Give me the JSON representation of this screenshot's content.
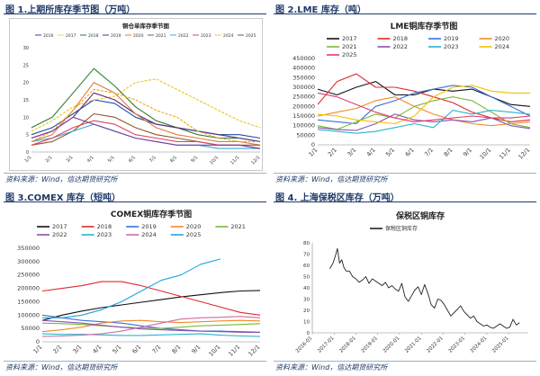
{
  "panels": [
    {
      "fig_title": "图 1.上期所库存季节图（万吨）",
      "source": "资料来源：Wind，信达期货研究所"
    },
    {
      "fig_title": "图 2.LME 库存（吨）",
      "source": "资料来源：Wind，信达期货研究所"
    },
    {
      "fig_title": "图 3.COMEX 库存（短吨）",
      "source": "资料来源：Wind，信达期货研究所"
    },
    {
      "fig_title": "图 4. 上海保税区库存（万吨）",
      "source": "资料来源：Wind，信达期货研究所"
    }
  ],
  "chart_data": [
    {
      "type": "line",
      "title": "铜仓单库存季节图",
      "ylim": [
        0,
        30
      ],
      "yticks": [
        0,
        5,
        10,
        15,
        20,
        25,
        30
      ],
      "xticks": [
        "1/1",
        "2/1",
        "3/1",
        "4/1",
        "5/1",
        "6/1",
        "7/1",
        "8/1",
        "9/1",
        "10/1",
        "11/1",
        "12/1"
      ],
      "legend_position": "top",
      "grid": false,
      "series": [
        {
          "name": "2016",
          "color": "#1f4e9c",
          "values": [
            5,
            7,
            11,
            15,
            14,
            10,
            8,
            7,
            6,
            5,
            5,
            4
          ]
        },
        {
          "name": "2017",
          "color": "#f0c419",
          "dash": true,
          "values": [
            6,
            9,
            13,
            15,
            16,
            20,
            21,
            18,
            15,
            12,
            9,
            7
          ]
        },
        {
          "name": "2018",
          "color": "#2e7d32",
          "values": [
            7,
            10,
            17,
            24,
            19,
            13,
            9,
            7,
            5,
            4,
            4,
            3
          ]
        },
        {
          "name": "2019",
          "color": "#5b2c83",
          "values": [
            4,
            6,
            10,
            17,
            15,
            11,
            8,
            7,
            6,
            5,
            4,
            3
          ]
        },
        {
          "name": "2020",
          "color": "#e07b39",
          "values": [
            3,
            5,
            12,
            20,
            17,
            11,
            7,
            5,
            4,
            3,
            3,
            2
          ]
        },
        {
          "name": "2021",
          "color": "#8b5a2b",
          "values": [
            2,
            3,
            6,
            11,
            10,
            7,
            5,
            4,
            3,
            2,
            2,
            2
          ]
        },
        {
          "name": "2022",
          "color": "#3fa9d8",
          "values": [
            3,
            4,
            6,
            8,
            6,
            4,
            3,
            2,
            2,
            1,
            1,
            1
          ]
        },
        {
          "name": "2023",
          "color": "#e0445e",
          "values": [
            2,
            4,
            7,
            9,
            8,
            5,
            4,
            3,
            3,
            2,
            2,
            1
          ]
        },
        {
          "name": "2024",
          "color": "#f2a51a",
          "dash": true,
          "values": [
            3,
            6,
            12,
            18,
            17,
            15,
            12,
            10,
            6,
            4,
            3,
            3
          ]
        },
        {
          "name": "2025",
          "color": "#7b3fa0",
          "values": [
            4,
            6,
            10,
            8,
            6,
            4,
            3,
            2,
            2,
            2,
            2,
            1
          ]
        }
      ]
    },
    {
      "type": "line",
      "title": "LME铜库存季节图",
      "ylim": [
        0,
        450000
      ],
      "yticks": [
        0,
        50000,
        100000,
        150000,
        200000,
        250000,
        300000,
        350000,
        400000,
        450000
      ],
      "xticks": [
        "1/1",
        "2/1",
        "3/1",
        "4/1",
        "5/1",
        "6/1",
        "7/1",
        "8/1",
        "9/1",
        "10/1",
        "11/1",
        "12/1"
      ],
      "legend_position": "top",
      "grid": false,
      "series": [
        {
          "name": "2017",
          "color": "#111111",
          "values": [
            290000,
            260000,
            300000,
            330000,
            260000,
            260000,
            290000,
            280000,
            290000,
            250000,
            210000,
            200000
          ]
        },
        {
          "name": "2018",
          "color": "#e0292b",
          "values": [
            210000,
            330000,
            370000,
            300000,
            300000,
            280000,
            250000,
            220000,
            170000,
            140000,
            120000,
            130000
          ]
        },
        {
          "name": "2019",
          "color": "#3a6fd8",
          "values": [
            130000,
            120000,
            110000,
            200000,
            230000,
            270000,
            290000,
            310000,
            300000,
            250000,
            200000,
            150000
          ]
        },
        {
          "name": "2020",
          "color": "#f08a24",
          "values": [
            150000,
            170000,
            190000,
            230000,
            250000,
            200000,
            160000,
            130000,
            110000,
            100000,
            110000,
            120000
          ]
        },
        {
          "name": "2021",
          "color": "#7fb539",
          "values": [
            100000,
            80000,
            120000,
            160000,
            140000,
            200000,
            230000,
            250000,
            230000,
            170000,
            110000,
            90000
          ]
        },
        {
          "name": "2022",
          "color": "#8a4fb3",
          "values": [
            90000,
            80000,
            75000,
            110000,
            160000,
            130000,
            120000,
            130000,
            120000,
            140000,
            100000,
            85000
          ]
        },
        {
          "name": "2023",
          "color": "#2bb3c9",
          "values": [
            80000,
            70000,
            60000,
            70000,
            90000,
            110000,
            90000,
            180000,
            160000,
            180000,
            170000,
            160000
          ]
        },
        {
          "name": "2024",
          "color": "#f4c000",
          "values": [
            160000,
            150000,
            130000,
            120000,
            110000,
            150000,
            250000,
            300000,
            310000,
            280000,
            270000,
            270000
          ]
        },
        {
          "name": "2025",
          "color": "#e03a6e",
          "values": [
            270000,
            250000,
            210000,
            170000,
            140000,
            120000,
            130000,
            140000,
            150000,
            140000,
            140000,
            150000
          ]
        }
      ]
    },
    {
      "type": "line",
      "title": "COMEX铜库存季节图",
      "ylim": [
        0,
        350000
      ],
      "yticks": [
        0,
        50000,
        100000,
        150000,
        200000,
        250000,
        300000,
        350000
      ],
      "xticks": [
        "1/1",
        "2/1",
        "3/1",
        "4/1",
        "5/1",
        "6/1",
        "7/1",
        "8/1",
        "9/1",
        "10/1",
        "11/1",
        "12/1"
      ],
      "legend_position": "top",
      "grid": false,
      "series": [
        {
          "name": "2017",
          "color": "#111111",
          "values": [
            80000,
            100000,
            115000,
            128000,
            138000,
            148000,
            158000,
            168000,
            176000,
            184000,
            190000,
            192000
          ]
        },
        {
          "name": "2018",
          "color": "#e0292b",
          "values": [
            190000,
            200000,
            210000,
            225000,
            225000,
            210000,
            190000,
            170000,
            150000,
            130000,
            110000,
            100000
          ]
        },
        {
          "name": "2019",
          "color": "#3a6fd8",
          "values": [
            100000,
            90000,
            80000,
            75000,
            70000,
            60000,
            50000,
            45000,
            40000,
            40000,
            38000,
            36000
          ]
        },
        {
          "name": "2020",
          "color": "#f08a24",
          "values": [
            38000,
            45000,
            55000,
            70000,
            78000,
            80000,
            75000,
            72000,
            75000,
            78000,
            80000,
            78000
          ]
        },
        {
          "name": "2021",
          "color": "#7fb539",
          "values": [
            70000,
            68000,
            65000,
            60000,
            55000,
            52000,
            50000,
            55000,
            60000,
            62000,
            65000,
            68000
          ]
        },
        {
          "name": "2022",
          "color": "#8a4fb3",
          "values": [
            80000,
            75000,
            70000,
            62000,
            55000,
            48000,
            45000,
            42000,
            40000,
            38000,
            36000,
            35000
          ]
        },
        {
          "name": "2023",
          "color": "#2bb3c9",
          "values": [
            30000,
            28000,
            28000,
            26000,
            24000,
            24000,
            26000,
            28000,
            30000,
            25000,
            22000,
            20000
          ]
        },
        {
          "name": "2024",
          "color": "#d16ba5",
          "values": [
            20000,
            22000,
            25000,
            30000,
            40000,
            55000,
            70000,
            85000,
            90000,
            92000,
            95000,
            90000
          ]
        },
        {
          "name": "2025",
          "color": "#1fa3e0",
          "values": [
            90000,
            90000,
            100000,
            120000,
            150000,
            190000,
            230000,
            250000,
            290000,
            310000
          ]
        }
      ]
    },
    {
      "type": "line",
      "title": "保税区铜库存",
      "ylim": [
        0,
        80
      ],
      "yticks": [
        0,
        10,
        20,
        30,
        40,
        50,
        60,
        70,
        80
      ],
      "xticks": [
        "2016-01",
        "2017-01",
        "2018-01",
        "2019-01",
        "2020-01",
        "2021-01",
        "2022-01",
        "2023-01",
        "2024-01",
        "2025-01"
      ],
      "legend_position": "top",
      "grid": false,
      "series": [
        {
          "name": "保税区铜库存",
          "color": "#222222",
          "x": [
            2016.8,
            2016.95,
            2017.05,
            2017.15,
            2017.25,
            2017.35,
            2017.45,
            2017.55,
            2017.7,
            2017.85,
            2018.0,
            2018.15,
            2018.3,
            2018.45,
            2018.6,
            2018.75,
            2018.9,
            2019.05,
            2019.2,
            2019.35,
            2019.5,
            2019.65,
            2019.8,
            2019.95,
            2020.1,
            2020.25,
            2020.4,
            2020.55,
            2020.7,
            2020.85,
            2021.0,
            2021.15,
            2021.3,
            2021.45,
            2021.6,
            2021.75,
            2021.9,
            2022.05,
            2022.2,
            2022.35,
            2022.5,
            2022.65,
            2022.8,
            2022.95,
            2023.1,
            2023.25,
            2023.4,
            2023.55,
            2023.7,
            2023.85,
            2024.0,
            2024.15,
            2024.3,
            2024.45,
            2024.6,
            2024.75,
            2024.9,
            2025.05,
            2025.2,
            2025.35,
            2025.5
          ],
          "values": [
            57,
            62,
            68,
            75,
            62,
            65,
            58,
            55,
            55,
            50,
            48,
            45,
            47,
            50,
            44,
            48,
            46,
            44,
            42,
            45,
            40,
            42,
            39,
            37,
            44,
            32,
            28,
            33,
            38,
            41,
            34,
            43,
            35,
            25,
            22,
            30,
            29,
            25,
            20,
            15,
            18,
            21,
            24,
            19,
            16,
            13,
            15,
            10,
            8,
            6,
            7,
            5,
            4,
            6,
            8,
            6,
            4,
            5,
            12,
            7,
            9
          ]
        }
      ]
    }
  ]
}
